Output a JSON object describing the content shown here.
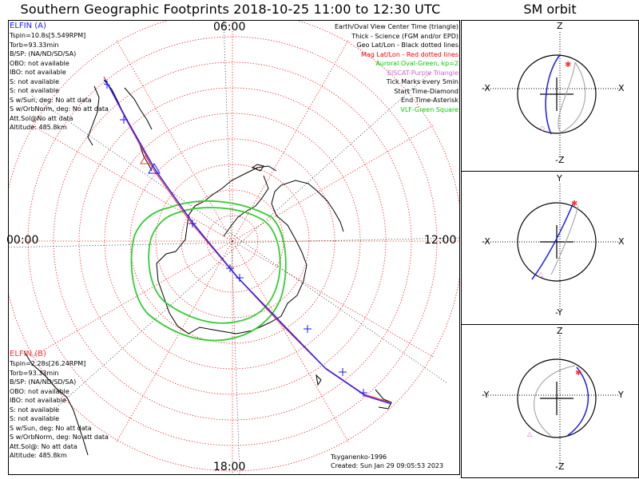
{
  "title": "Southern Geographic Footprints 2018-10-25 11:00 to 12:30 UTC",
  "sm_title": "SM orbit",
  "probe_a": {
    "name": "ELFIN (A)",
    "lines": [
      "Tspin=10.8s[5.549RPM]",
      "Torb=93.33min",
      "B/SP: (NA/ND/SD/SA)",
      "OBO: not available",
      "IBO: not available",
      "S: not available",
      "S: not available",
      "S w/Sun, deg: No att data",
      "S w/OrbNorm, deg: No att data",
      "Att.Sol@No att data",
      "Altitude: 485.8km"
    ],
    "color": "#1a1aff"
  },
  "probe_b": {
    "name": "ELFIN (B)",
    "lines": [
      "Tspin=2.28s[26.24RPM]",
      "Torb=93.33min",
      "B/SP: (NA/ND/SD/SA)",
      "OBO: not available",
      "IBO: not available",
      "S: not available",
      "S: not available",
      "S w/Sun, deg: No att data",
      "S w/OrbNorm, deg: No att data",
      "Att.Sol@: No att data",
      "Altitude: 485.8km"
    ],
    "color": "#ff3333"
  },
  "legend": [
    {
      "text": "Earth/Oval View Center Time (triangle)",
      "color": "#000000"
    },
    {
      "text": "Thick - Science (FGM and/or EPD)",
      "color": "#000000"
    },
    {
      "text": "Geo Lat/Lon - Black dotted lines",
      "color": "#000000"
    },
    {
      "text": "Mag Lat/Lon - Red dotted lines",
      "color": "#ff0000"
    },
    {
      "text": "Auroral Oval-Green, kp=2",
      "color": "#00cc00"
    },
    {
      "text": "EISCAT-Purple Triangle",
      "color": "#cc66cc"
    },
    {
      "text": "Tick Marks every 5min",
      "color": "#000000"
    },
    {
      "text": "Start Time-Diamond",
      "color": "#000000"
    },
    {
      "text": "End Time-Asterisk",
      "color": "#000000"
    },
    {
      "text": "VLF-Green Square",
      "color": "#00cc00"
    }
  ],
  "times": {
    "top": "06:00",
    "left": "00:00",
    "right": "12:00",
    "bottom": "18:00"
  },
  "credit": {
    "author": "Tsyganenko-1996",
    "created": "Created: Sun Jan 29 09:05:53 2023"
  },
  "sm_panels": [
    {
      "top": "Z",
      "bottom": "-Z",
      "left": "-X",
      "right": "X"
    },
    {
      "top": "Y",
      "bottom": "-Y",
      "left": "-X",
      "right": "X"
    },
    {
      "top": "Z",
      "bottom": "-Z",
      "left": "-Y",
      "right": "Y"
    }
  ],
  "colors": {
    "orbit_a": "#1a1aff",
    "orbit_b": "#ff3333",
    "oval": "#33cc33",
    "mag_grid": "#ff0000",
    "geo_grid": "#000000"
  }
}
